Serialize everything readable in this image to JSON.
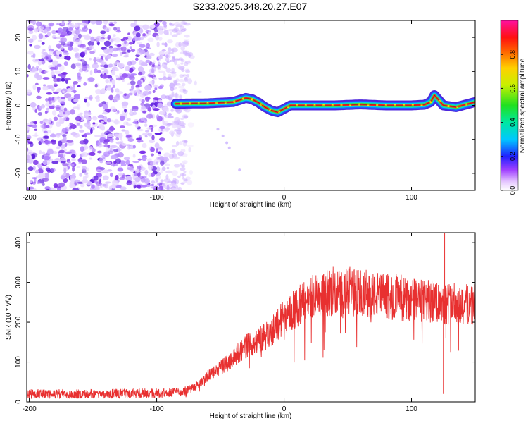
{
  "title": "S233.2025.348.20.27.E07",
  "chart_data": [
    {
      "type": "heatmap",
      "name": "spectrogram",
      "xlabel": "Height of straight line (km)",
      "ylabel": "Frequency (Hz)",
      "xlim": [
        -202,
        150
      ],
      "ylim": [
        -25,
        25
      ],
      "xticks": [
        -200,
        -100,
        0,
        100
      ],
      "yticks": [
        -20,
        -10,
        0,
        10,
        20
      ],
      "noise_region_x": [
        -202,
        -75
      ],
      "signal_region_x": [
        -85,
        150
      ],
      "ridge": {
        "x": [
          -85,
          -60,
          -40,
          -30,
          -25,
          -20,
          -15,
          -10,
          -5,
          0,
          5,
          10,
          20,
          40,
          60,
          80,
          100,
          110,
          115,
          118,
          125,
          135,
          150
        ],
        "y": [
          0.5,
          0.6,
          1.0,
          2.2,
          1.8,
          0.8,
          -0.5,
          -1.5,
          -2.0,
          -1.0,
          0.0,
          0.0,
          0.0,
          0.0,
          0.3,
          0.0,
          0.0,
          0.2,
          1.0,
          3.0,
          0.0,
          -0.5,
          1.0
        ]
      },
      "colorbar": {
        "label": "Normalized spectral amplitude",
        "range": [
          0,
          1
        ],
        "ticks": [
          0.0,
          0.2,
          0.4,
          0.6,
          0.8
        ]
      }
    },
    {
      "type": "line",
      "name": "snr",
      "xlabel": "Height of straight line (km)",
      "ylabel": "SNR (10 * v/v)",
      "xlim": [
        -202,
        150
      ],
      "ylim": [
        0,
        425
      ],
      "xticks": [
        -200,
        -100,
        0,
        100
      ],
      "yticks": [
        0,
        100,
        200,
        300,
        400
      ],
      "color": "#e83030",
      "envelope": {
        "x": [
          -202,
          -150,
          -100,
          -80,
          -70,
          -60,
          -50,
          -40,
          -30,
          -20,
          -10,
          0,
          10,
          20,
          25,
          30,
          40,
          60,
          80,
          100,
          120,
          140,
          150
        ],
        "y": [
          20,
          20,
          22,
          25,
          35,
          65,
          85,
          110,
          140,
          155,
          175,
          215,
          235,
          260,
          275,
          270,
          275,
          275,
          265,
          255,
          250,
          245,
          245
        ]
      },
      "spikes": [
        {
          "x": 126,
          "y": 425
        },
        {
          "x": 125,
          "y": 20
        },
        {
          "x": 127,
          "y": 160
        },
        {
          "x": 50,
          "y": 330
        }
      ]
    }
  ]
}
